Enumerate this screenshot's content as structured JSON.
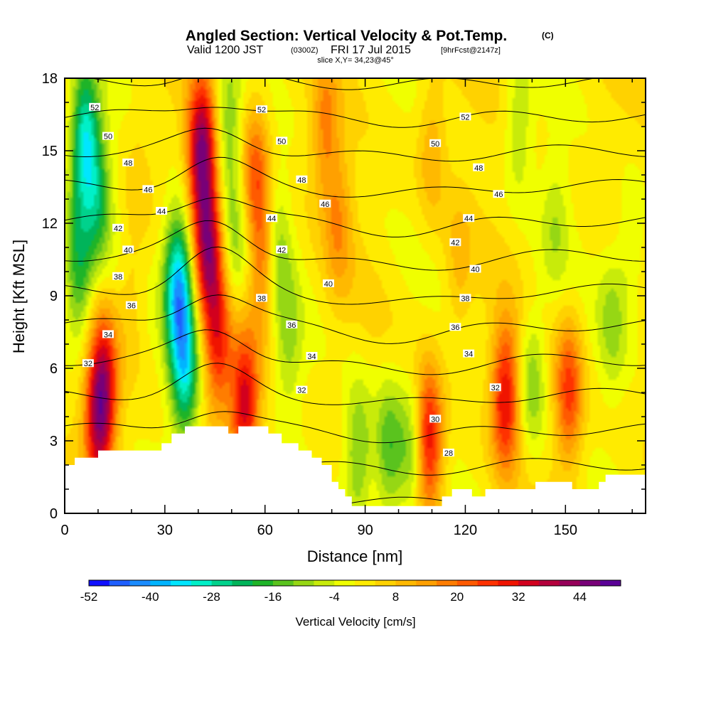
{
  "chart_data": {
    "type": "heatmap",
    "title": "Angled Section: Vertical Velocity & Pot.Temp.",
    "title_units": "(C)",
    "subtitle_valid": "Valid 1200 JST",
    "subtitle_utc": "(0300Z)",
    "subtitle_date": "FRI 17 Jul 2015",
    "subtitle_fcst": "[9hrFcst@2147z]",
    "slice_label": "slice X,Y= 34,23@45°",
    "xlabel": "Distance [nm]",
    "ylabel": "Height [Kft MSL]",
    "xlim": [
      0,
      174
    ],
    "ylim": [
      0,
      18
    ],
    "x_ticks": [
      0,
      30,
      60,
      90,
      120,
      150
    ],
    "y_ticks": [
      0,
      3,
      6,
      9,
      12,
      15,
      18
    ],
    "colorbar": {
      "title": "Vertical Velocity [cm/s]",
      "min": -52,
      "max": 52,
      "step": 4,
      "tick_labels": [
        -52,
        -40,
        -28,
        -16,
        -4,
        8,
        20,
        32,
        44
      ],
      "colors": [
        "#1010ff",
        "#1f5fff",
        "#1a8cff",
        "#00b4ff",
        "#00e6ff",
        "#00f0c8",
        "#00d28c",
        "#00b45a",
        "#1eb428",
        "#5ac31e",
        "#96d714",
        "#c8eb0a",
        "#f0ff00",
        "#ffeb00",
        "#ffd200",
        "#ffb900",
        "#ffa000",
        "#ff7d00",
        "#ff5a00",
        "#ff3200",
        "#f01400",
        "#d2001e",
        "#b4003c",
        "#96005a",
        "#780078",
        "#5a0096"
      ]
    },
    "velocity_features": [
      {
        "x": 10,
        "z": 3.8,
        "w": 30
      },
      {
        "x": 12,
        "z": 5.5,
        "w": 24
      },
      {
        "x": 4,
        "z": 10,
        "w": -22
      },
      {
        "x": 6,
        "z": 15.5,
        "w": -32
      },
      {
        "x": 10,
        "z": 13,
        "w": -18
      },
      {
        "x": 20,
        "z": 9,
        "w": 6
      },
      {
        "x": 22,
        "z": 14,
        "w": 4
      },
      {
        "x": 34,
        "z": 9.5,
        "w": -38
      },
      {
        "x": 36,
        "z": 6,
        "w": -30
      },
      {
        "x": 41,
        "z": 15,
        "w": 40
      },
      {
        "x": 43,
        "z": 11,
        "w": 34
      },
      {
        "x": 46,
        "z": 7,
        "w": 24
      },
      {
        "x": 49,
        "z": 16,
        "w": -14
      },
      {
        "x": 51,
        "z": 11,
        "w": -12
      },
      {
        "x": 54,
        "z": 4.5,
        "w": 32
      },
      {
        "x": 57,
        "z": 14,
        "w": 20
      },
      {
        "x": 60,
        "z": 10.5,
        "w": 22
      },
      {
        "x": 63,
        "z": 11,
        "w": -16
      },
      {
        "x": 67,
        "z": 7,
        "w": -10
      },
      {
        "x": 78,
        "z": 16,
        "w": 14
      },
      {
        "x": 82,
        "z": 12,
        "w": 12
      },
      {
        "x": 88,
        "z": 2.5,
        "w": -16
      },
      {
        "x": 97,
        "z": 2.5,
        "w": -18
      },
      {
        "x": 104,
        "z": 2.5,
        "w": -14
      },
      {
        "x": 109,
        "z": 3.0,
        "w": 32
      },
      {
        "x": 110,
        "z": 15,
        "w": 10
      },
      {
        "x": 118,
        "z": 10,
        "w": 8
      },
      {
        "x": 132,
        "z": 4.8,
        "w": 30
      },
      {
        "x": 136,
        "z": 16,
        "w": -10
      },
      {
        "x": 140,
        "z": 5.5,
        "w": -14
      },
      {
        "x": 147,
        "z": 12,
        "w": -8
      },
      {
        "x": 151,
        "z": 5.0,
        "w": 24
      },
      {
        "x": 164,
        "z": 8,
        "w": -10
      },
      {
        "x": 170,
        "z": 11,
        "w": -8
      }
    ],
    "theta_contours": [
      {
        "value": 28,
        "label": "28",
        "label_x": 115,
        "label_z": 2.5
      },
      {
        "value": 30,
        "label": "30",
        "label_x": 111,
        "label_z": 3.9
      },
      {
        "value": 32,
        "label": "32",
        "label_x": 7,
        "label_z": 6.2
      },
      {
        "value": 32,
        "label": "32",
        "label_x": 71,
        "label_z": 5.1
      },
      {
        "value": 32,
        "label": "32",
        "label_x": 129,
        "label_z": 5.2
      },
      {
        "value": 34,
        "label": "34",
        "label_x": 13,
        "label_z": 7.4
      },
      {
        "value": 34,
        "label": "34",
        "label_x": 74,
        "label_z": 6.5
      },
      {
        "value": 34,
        "label": "34",
        "label_x": 121,
        "label_z": 6.6
      },
      {
        "value": 36,
        "label": "36",
        "label_x": 20,
        "label_z": 8.6
      },
      {
        "value": 36,
        "label": "36",
        "label_x": 68,
        "label_z": 7.8
      },
      {
        "value": 36,
        "label": "36",
        "label_x": 117,
        "label_z": 7.7
      },
      {
        "value": 38,
        "label": "38",
        "label_x": 16,
        "label_z": 9.8
      },
      {
        "value": 38,
        "label": "38",
        "label_x": 59,
        "label_z": 8.9
      },
      {
        "value": 38,
        "label": "38",
        "label_x": 120,
        "label_z": 8.9
      },
      {
        "value": 40,
        "label": "40",
        "label_x": 19,
        "label_z": 10.9
      },
      {
        "value": 40,
        "label": "40",
        "label_x": 79,
        "label_z": 9.5
      },
      {
        "value": 40,
        "label": "40",
        "label_x": 123,
        "label_z": 10.1
      },
      {
        "value": 42,
        "label": "42",
        "label_x": 16,
        "label_z": 11.8
      },
      {
        "value": 42,
        "label": "42",
        "label_x": 65,
        "label_z": 10.9
      },
      {
        "value": 42,
        "label": "42",
        "label_x": 117,
        "label_z": 11.2
      },
      {
        "value": 44,
        "label": "44",
        "label_x": 29,
        "label_z": 12.5
      },
      {
        "value": 44,
        "label": "44",
        "label_x": 62,
        "label_z": 12.2
      },
      {
        "value": 44,
        "label": "44",
        "label_x": 121,
        "label_z": 12.2
      },
      {
        "value": 46,
        "label": "46",
        "label_x": 25,
        "label_z": 13.4
      },
      {
        "value": 46,
        "label": "46",
        "label_x": 78,
        "label_z": 12.8
      },
      {
        "value": 46,
        "label": "46",
        "label_x": 130,
        "label_z": 13.2
      },
      {
        "value": 48,
        "label": "48",
        "label_x": 19,
        "label_z": 14.5
      },
      {
        "value": 48,
        "label": "48",
        "label_x": 71,
        "label_z": 13.8
      },
      {
        "value": 48,
        "label": "48",
        "label_x": 124,
        "label_z": 14.3
      },
      {
        "value": 50,
        "label": "50",
        "label_x": 13,
        "label_z": 15.6
      },
      {
        "value": 50,
        "label": "50",
        "label_x": 65,
        "label_z": 15.4
      },
      {
        "value": 50,
        "label": "50",
        "label_x": 111,
        "label_z": 15.3
      },
      {
        "value": 52,
        "label": "52",
        "label_x": 9,
        "label_z": 16.8
      },
      {
        "value": 52,
        "label": "52",
        "label_x": 59,
        "label_z": 16.7
      },
      {
        "value": 52,
        "label": "52",
        "label_x": 120,
        "label_z": 16.4
      }
    ],
    "terrain": [
      [
        0,
        2.0
      ],
      [
        3,
        2.0
      ],
      [
        3,
        2.3
      ],
      [
        10,
        2.3
      ],
      [
        10,
        2.6
      ],
      [
        29,
        2.6
      ],
      [
        29,
        2.9
      ],
      [
        32,
        2.9
      ],
      [
        32,
        3.3
      ],
      [
        36,
        3.3
      ],
      [
        36,
        3.6
      ],
      [
        49,
        3.6
      ],
      [
        49,
        3.3
      ],
      [
        52,
        3.3
      ],
      [
        52,
        3.6
      ],
      [
        61,
        3.6
      ],
      [
        61,
        3.3
      ],
      [
        65,
        3.3
      ],
      [
        65,
        2.9
      ],
      [
        70,
        2.9
      ],
      [
        70,
        2.6
      ],
      [
        74,
        2.6
      ],
      [
        74,
        2.3
      ],
      [
        77,
        2.3
      ],
      [
        77,
        2.0
      ],
      [
        80,
        2.0
      ],
      [
        80,
        1.3
      ],
      [
        82,
        1.3
      ],
      [
        82,
        1.0
      ],
      [
        84,
        1.0
      ],
      [
        84,
        0.7
      ],
      [
        86,
        0.7
      ],
      [
        86,
        0.3
      ],
      [
        113,
        0.3
      ],
      [
        113,
        0.7
      ],
      [
        116,
        0.7
      ],
      [
        116,
        1.0
      ],
      [
        122,
        1.0
      ],
      [
        122,
        0.7
      ],
      [
        126,
        0.7
      ],
      [
        126,
        1.0
      ],
      [
        141,
        1.0
      ],
      [
        141,
        1.3
      ],
      [
        152,
        1.3
      ],
      [
        152,
        1.0
      ],
      [
        160,
        1.0
      ],
      [
        160,
        1.3
      ],
      [
        162,
        1.3
      ],
      [
        162,
        1.6
      ],
      [
        174,
        1.6
      ]
    ]
  }
}
